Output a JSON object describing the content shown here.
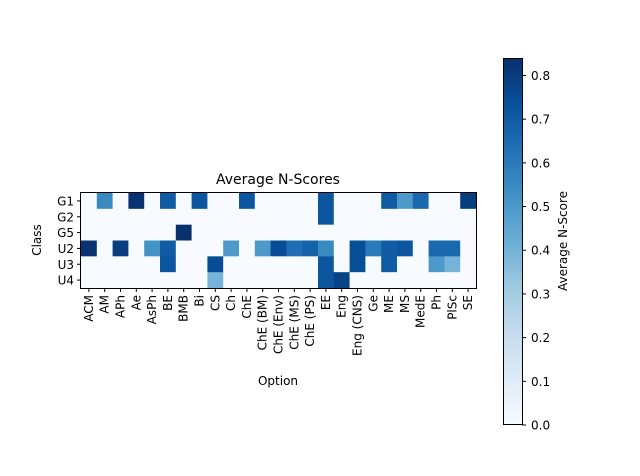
{
  "chart_data": {
    "type": "heatmap",
    "title": "Average N-Scores",
    "xlabel": "Option",
    "ylabel": "Class",
    "colorbar_label": "Average N-Score",
    "colormap": "Blues",
    "vlim": [
      0,
      0.84
    ],
    "colorbar_ticks": [
      "0.0",
      "0.1",
      "0.2",
      "0.3",
      "0.4",
      "0.5",
      "0.6",
      "0.7",
      "0.8"
    ],
    "colorbar_tick_values": [
      0,
      0.1,
      0.2,
      0.3,
      0.4,
      0.5,
      0.6,
      0.7,
      0.8
    ],
    "x_categories": [
      "ACM",
      "AM",
      "APh",
      "Ae",
      "AsPh",
      "BE",
      "BMB",
      "Bi",
      "CS",
      "Ch",
      "ChE",
      "ChE (BM)",
      "ChE (Env)",
      "ChE (MS)",
      "ChE (PS)",
      "EE",
      "Eng",
      "Eng (CNS)",
      "Ge",
      "ME",
      "MS",
      "MedE",
      "Ph",
      "PlSc",
      "SE"
    ],
    "y_categories": [
      "G1",
      "G2",
      "G5",
      "U2",
      "U3",
      "U4"
    ],
    "values": [
      [
        0,
        0.55,
        0,
        0.83,
        0,
        0.7,
        0,
        0.72,
        0,
        0,
        0.72,
        0,
        0,
        0,
        0,
        0.72,
        0,
        0,
        0,
        0.7,
        0.5,
        0.66,
        0,
        0,
        0.8
      ],
      [
        0,
        0,
        0,
        0,
        0,
        0,
        0,
        0,
        0,
        0,
        0,
        0,
        0,
        0,
        0,
        0.72,
        0,
        0,
        0,
        0,
        0,
        0,
        0,
        0,
        0
      ],
      [
        0,
        0,
        0,
        0,
        0,
        0,
        0.84,
        0,
        0,
        0,
        0,
        0,
        0,
        0,
        0,
        0,
        0,
        0,
        0,
        0,
        0,
        0,
        0,
        0,
        0
      ],
      [
        0.83,
        0,
        0.8,
        0,
        0.52,
        0.7,
        0,
        0,
        0,
        0.5,
        0,
        0.5,
        0.75,
        0.64,
        0.68,
        0.55,
        0,
        0.74,
        0.6,
        0.7,
        0.72,
        0,
        0.66,
        0.66,
        0
      ],
      [
        0,
        0,
        0,
        0,
        0,
        0.72,
        0,
        0,
        0.75,
        0,
        0,
        0,
        0,
        0,
        0,
        0.72,
        0,
        0.74,
        0,
        0.7,
        0,
        0,
        0.5,
        0.4,
        0
      ],
      [
        0,
        0,
        0,
        0,
        0,
        0,
        0,
        0,
        0.4,
        0,
        0,
        0,
        0,
        0,
        0,
        0.72,
        0.78,
        0,
        0,
        0,
        0,
        0,
        0,
        0,
        0
      ]
    ]
  }
}
